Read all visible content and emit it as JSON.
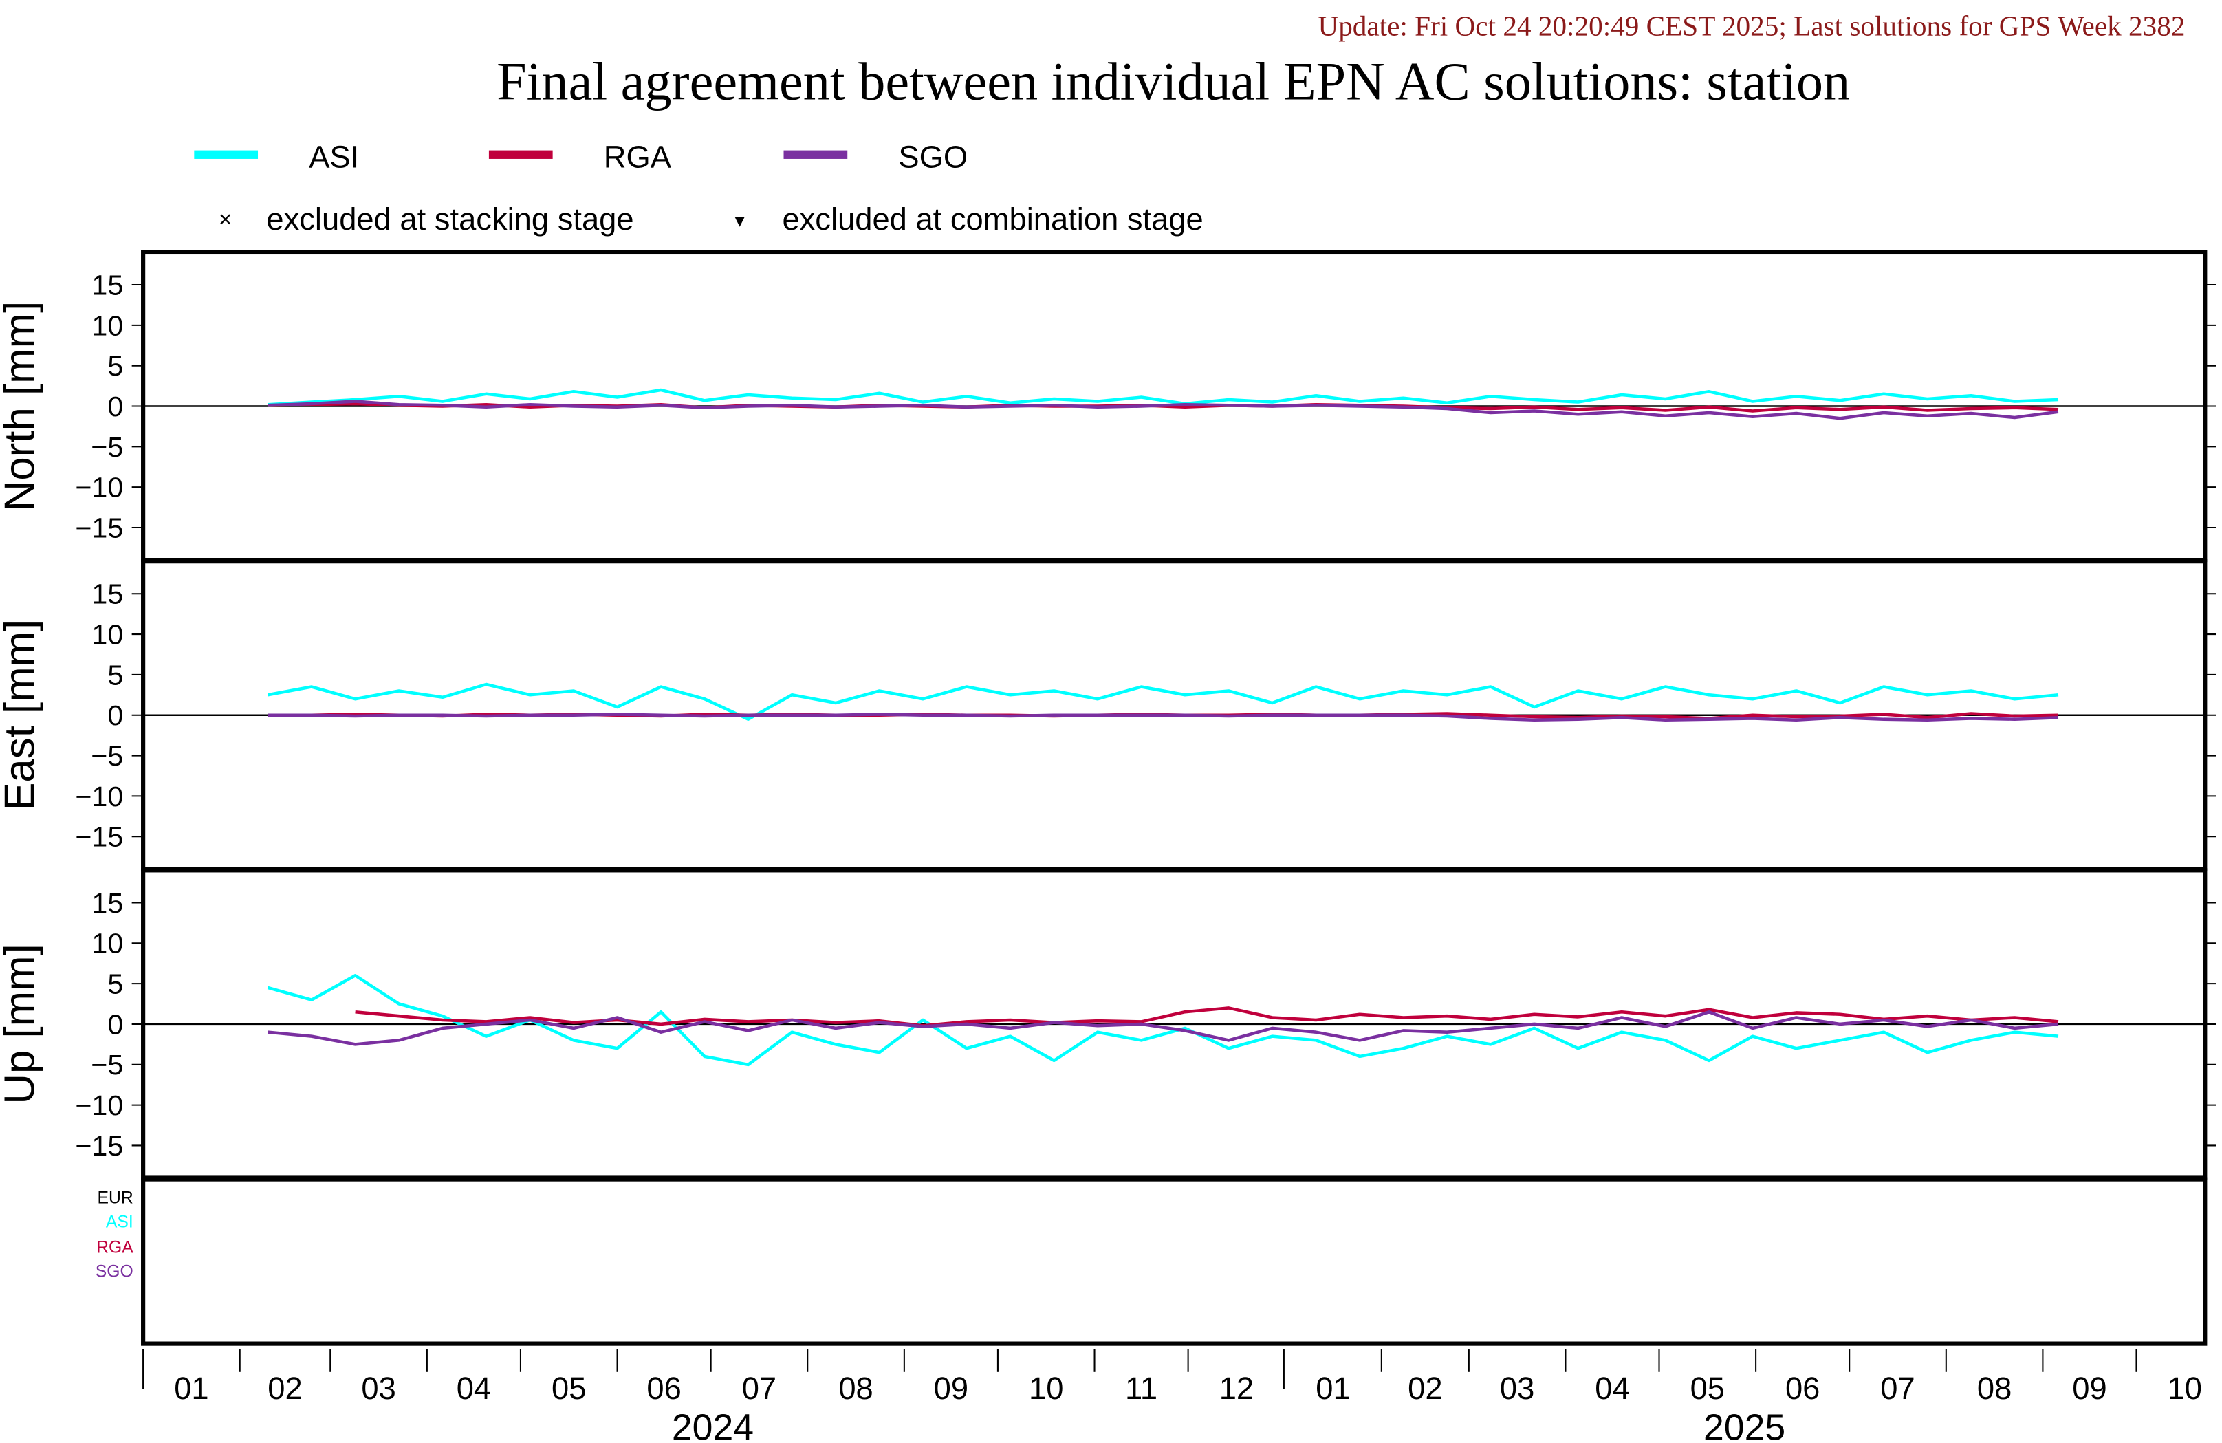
{
  "update_text": "Update: Fri Oct 24 20:20:49 CEST 2025; Last solutions for GPS Week 2382",
  "colors": {
    "ASI": "#00ffff",
    "RGA": "#c0003c",
    "SGO": "#7a30a0",
    "EUR": "#000000",
    "update": "#8b1a1a"
  },
  "legend": {
    "series": [
      "ASI",
      "RGA",
      "SGO"
    ],
    "excluded_stacking": "excluded at stacking stage",
    "excluded_combination": "excluded at combination stage",
    "cross_symbol": "×",
    "triangle_symbol": "▾"
  },
  "bottom_panel_labels": [
    "EUR",
    "ASI",
    "RGA",
    "SGO"
  ],
  "chart_data": {
    "type": "line",
    "title": "Final agreement between individual EPN AC solutions: station",
    "x_start_date": "2024-02-10",
    "x_step_days": 14,
    "xlim": [
      "2024-01-01",
      "2025-10-23"
    ],
    "month_ticks_2024": [
      "01",
      "02",
      "03",
      "04",
      "05",
      "06",
      "07",
      "08",
      "09",
      "10",
      "11",
      "12"
    ],
    "month_ticks_2025": [
      "01",
      "02",
      "03",
      "04",
      "05",
      "06",
      "07",
      "08",
      "09",
      "10"
    ],
    "year_labels": [
      "2024",
      "2025"
    ],
    "yticks": [
      15,
      10,
      5,
      0,
      -5,
      -10,
      -15
    ],
    "ylim": [
      -19,
      19
    ],
    "panels": [
      {
        "ylabel": "North [mm]",
        "series": [
          {
            "name": "ASI",
            "values": [
              0.2,
              0.5,
              0.8,
              1.2,
              0.6,
              1.5,
              0.9,
              1.8,
              1.1,
              2.0,
              0.7,
              1.4,
              1.0,
              0.8,
              1.6,
              0.5,
              1.2,
              0.4,
              0.9,
              0.6,
              1.1,
              0.3,
              0.8,
              0.5,
              1.3,
              0.6,
              1.0,
              0.4,
              1.2,
              0.8,
              0.5,
              1.4,
              0.9,
              1.8,
              0.6,
              1.2,
              0.7,
              1.5,
              0.9,
              1.3,
              0.6,
              0.8
            ]
          },
          {
            "name": "RGA",
            "values": [
              0.1,
              0.2,
              0.3,
              0.1,
              0.0,
              0.2,
              -0.1,
              0.1,
              0.0,
              0.2,
              -0.2,
              0.1,
              0.0,
              -0.1,
              0.1,
              0.0,
              -0.1,
              0.1,
              0.0,
              0.0,
              0.1,
              -0.1,
              0.1,
              0.0,
              0.2,
              0.1,
              0.0,
              -0.2,
              -0.3,
              -0.1,
              -0.4,
              -0.2,
              -0.5,
              -0.1,
              -0.6,
              -0.2,
              -0.4,
              -0.1,
              -0.5,
              -0.3,
              -0.2,
              -0.4
            ]
          },
          {
            "name": "SGO",
            "values": [
              0.1,
              0.3,
              0.6,
              0.2,
              0.1,
              -0.1,
              0.2,
              0.0,
              -0.1,
              0.1,
              -0.2,
              0.0,
              0.1,
              -0.1,
              0.0,
              0.1,
              -0.1,
              0.0,
              0.1,
              -0.1,
              0.0,
              0.2,
              0.1,
              0.0,
              0.1,
              0.0,
              -0.1,
              -0.3,
              -0.8,
              -0.6,
              -1.0,
              -0.7,
              -1.2,
              -0.8,
              -1.3,
              -0.9,
              -1.5,
              -0.8,
              -1.2,
              -0.9,
              -1.4,
              -0.7
            ]
          }
        ]
      },
      {
        "ylabel": "East [mm]",
        "series": [
          {
            "name": "ASI",
            "values": [
              2.5,
              3.5,
              2.0,
              3.0,
              2.2,
              3.8,
              2.5,
              3.0,
              1.0,
              3.5,
              2.0,
              -0.5,
              2.5,
              1.5,
              3.0,
              2.0,
              3.5,
              2.5,
              3.0,
              2.0,
              3.5,
              2.5,
              3.0,
              1.5,
              3.5,
              2.0,
              3.0,
              2.5,
              3.5,
              1.0,
              3.0,
              2.0,
              3.5,
              2.5,
              2.0,
              3.0,
              1.5,
              3.5,
              2.5,
              3.0,
              2.0,
              2.5
            ]
          },
          {
            "name": "RGA",
            "values": [
              0.0,
              0.0,
              0.1,
              0.0,
              -0.1,
              0.1,
              0.0,
              0.1,
              0.0,
              -0.1,
              0.1,
              0.0,
              0.1,
              0.0,
              0.0,
              0.1,
              0.0,
              0.0,
              -0.1,
              0.0,
              0.1,
              0.0,
              0.0,
              0.1,
              0.0,
              0.0,
              0.1,
              0.2,
              0.0,
              -0.2,
              -0.3,
              -0.1,
              -0.2,
              -0.4,
              0.0,
              -0.2,
              -0.1,
              0.1,
              -0.3,
              0.2,
              -0.1,
              0.0
            ]
          },
          {
            "name": "SGO",
            "values": [
              0.0,
              0.0,
              -0.1,
              0.0,
              0.0,
              -0.1,
              0.0,
              0.0,
              0.1,
              0.0,
              -0.1,
              0.0,
              0.0,
              0.0,
              0.1,
              0.0,
              0.0,
              -0.1,
              0.0,
              0.0,
              0.0,
              0.0,
              -0.1,
              0.0,
              0.0,
              0.0,
              0.0,
              -0.1,
              -0.4,
              -0.6,
              -0.5,
              -0.3,
              -0.6,
              -0.5,
              -0.4,
              -0.6,
              -0.3,
              -0.5,
              -0.6,
              -0.4,
              -0.5,
              -0.3
            ]
          }
        ]
      },
      {
        "ylabel": "Up [mm]",
        "series": [
          {
            "name": "ASI",
            "values": [
              4.5,
              3.0,
              6.0,
              2.5,
              1.0,
              -1.5,
              0.5,
              -2.0,
              -3.0,
              1.5,
              -4.0,
              -5.0,
              -1.0,
              -2.5,
              -3.5,
              0.5,
              -3.0,
              -1.5,
              -4.5,
              -1.0,
              -2.0,
              -0.5,
              -3.0,
              -1.5,
              -2.0,
              -4.0,
              -3.0,
              -1.5,
              -2.5,
              -0.5,
              -3.0,
              -1.0,
              -2.0,
              -4.5,
              -1.5,
              -3.0,
              -2.0,
              -1.0,
              -3.5,
              -2.0,
              -1.0,
              -1.5
            ]
          },
          {
            "name": "RGA",
            "values": [
              null,
              null,
              1.5,
              1.0,
              0.5,
              0.3,
              0.8,
              0.2,
              0.5,
              0.0,
              0.6,
              0.3,
              0.5,
              0.2,
              0.4,
              -0.2,
              0.3,
              0.5,
              0.2,
              0.4,
              0.3,
              1.5,
              2.0,
              0.8,
              0.5,
              1.2,
              0.8,
              1.0,
              0.6,
              1.2,
              0.9,
              1.5,
              1.0,
              1.8,
              0.8,
              1.4,
              1.2,
              0.6,
              1.0,
              0.5,
              0.8,
              0.3
            ]
          },
          {
            "name": "SGO",
            "values": [
              -1.0,
              -1.5,
              -2.5,
              -2.0,
              -0.5,
              0.0,
              0.5,
              -0.5,
              0.8,
              -1.0,
              0.3,
              -0.8,
              0.5,
              -0.5,
              0.2,
              -0.3,
              0.0,
              -0.5,
              0.2,
              -0.2,
              0.0,
              -0.8,
              -2.0,
              -0.5,
              -1.0,
              -2.0,
              -0.8,
              -1.0,
              -0.5,
              0.0,
              -0.5,
              0.8,
              -0.3,
              1.5,
              -0.5,
              0.8,
              0.0,
              0.5,
              -0.3,
              0.5,
              -0.5,
              0.0
            ]
          }
        ]
      }
    ]
  }
}
